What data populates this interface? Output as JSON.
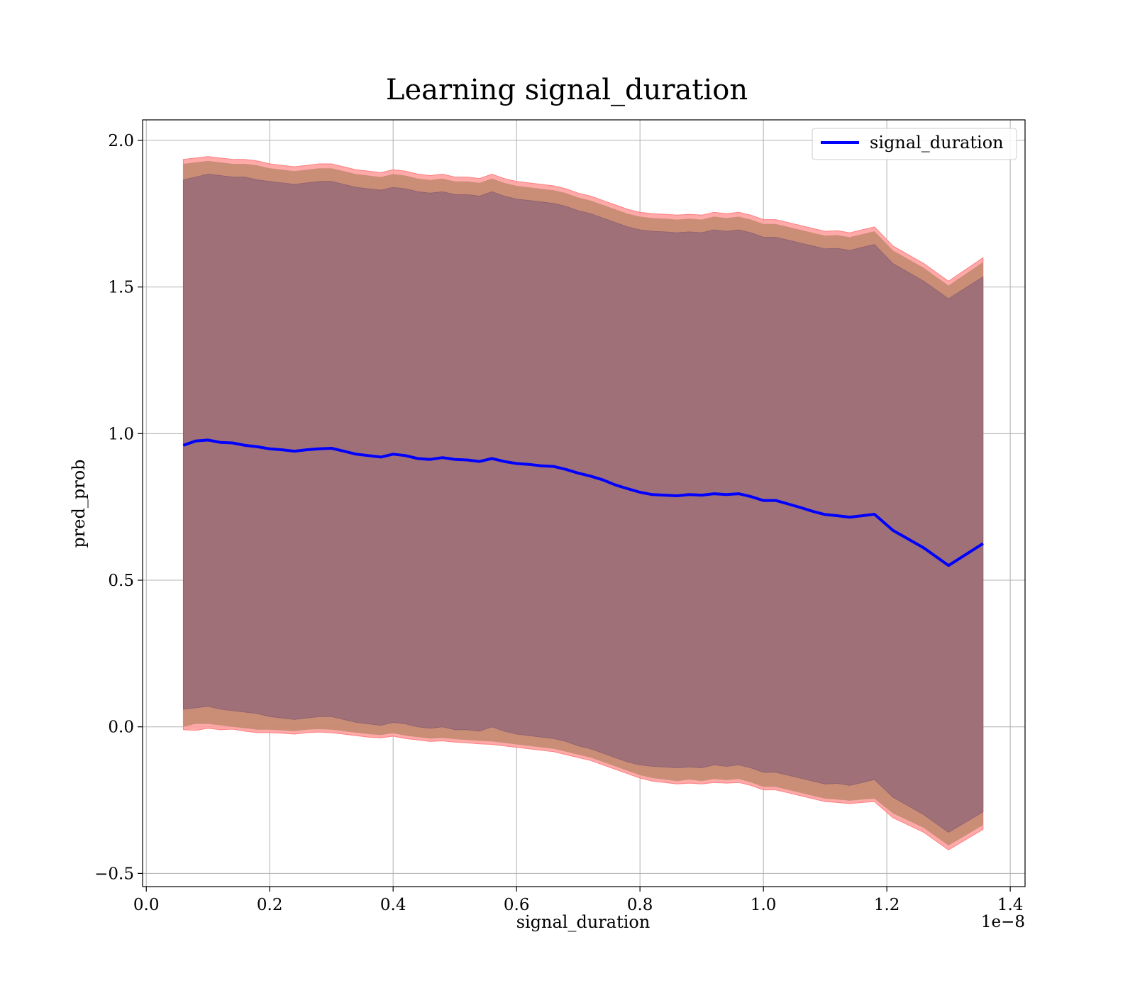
{
  "chart_data": {
    "type": "line",
    "title": "Learning signal_duration",
    "xlabel": "signal_duration",
    "ylabel": "pred_prob",
    "x_offset_label": "1e−8",
    "xlim": [
      -0.006,
      1.424
    ],
    "ylim": [
      -0.545,
      2.07
    ],
    "xticks": [
      0.0,
      0.2,
      0.4,
      0.6,
      0.8,
      1.0,
      1.2,
      1.4
    ],
    "xtick_labels": [
      "0.0",
      "0.2",
      "0.4",
      "0.6",
      "0.8",
      "1.0",
      "1.2",
      "1.4"
    ],
    "yticks": [
      -0.5,
      0.0,
      0.5,
      1.0,
      1.5,
      2.0
    ],
    "ytick_labels": [
      "−0.5",
      "0.0",
      "0.5",
      "1.0",
      "1.5",
      "2.0"
    ],
    "grid": true,
    "legend": {
      "position": "top-right",
      "entries": [
        "signal_duration"
      ]
    },
    "colors": {
      "line": "#0000ff",
      "outer_band": "#ff9a9a",
      "inner_band": "#8b5a6a",
      "mid_band": "#c48a70"
    },
    "x": [
      0.06,
      0.08,
      0.1,
      0.12,
      0.14,
      0.16,
      0.18,
      0.2,
      0.22,
      0.24,
      0.26,
      0.28,
      0.3,
      0.32,
      0.34,
      0.36,
      0.38,
      0.4,
      0.42,
      0.44,
      0.46,
      0.48,
      0.5,
      0.52,
      0.54,
      0.56,
      0.58,
      0.6,
      0.62,
      0.64,
      0.66,
      0.68,
      0.7,
      0.72,
      0.74,
      0.76,
      0.78,
      0.8,
      0.82,
      0.84,
      0.86,
      0.88,
      0.9,
      0.92,
      0.94,
      0.96,
      0.98,
      1.0,
      1.02,
      1.04,
      1.06,
      1.08,
      1.1,
      1.12,
      1.14,
      1.16,
      1.18,
      1.21,
      1.26,
      1.3,
      1.356
    ],
    "series": [
      {
        "name": "signal_duration",
        "values": [
          0.96,
          0.975,
          0.978,
          0.97,
          0.968,
          0.96,
          0.955,
          0.948,
          0.945,
          0.94,
          0.945,
          0.948,
          0.95,
          0.94,
          0.93,
          0.925,
          0.92,
          0.93,
          0.925,
          0.915,
          0.912,
          0.918,
          0.912,
          0.91,
          0.905,
          0.915,
          0.905,
          0.898,
          0.895,
          0.89,
          0.888,
          0.878,
          0.865,
          0.855,
          0.842,
          0.825,
          0.812,
          0.8,
          0.792,
          0.79,
          0.788,
          0.792,
          0.79,
          0.795,
          0.792,
          0.795,
          0.785,
          0.772,
          0.772,
          0.76,
          0.748,
          0.735,
          0.724,
          0.72,
          0.715,
          0.72,
          0.725,
          0.67,
          0.61,
          0.55,
          0.625
        ]
      }
    ],
    "bands": {
      "outer": {
        "lower": [
          -0.01,
          -0.012,
          -0.005,
          -0.01,
          -0.008,
          -0.015,
          -0.02,
          -0.02,
          -0.022,
          -0.025,
          -0.02,
          -0.018,
          -0.02,
          -0.025,
          -0.03,
          -0.035,
          -0.038,
          -0.032,
          -0.04,
          -0.045,
          -0.05,
          -0.048,
          -0.052,
          -0.055,
          -0.058,
          -0.06,
          -0.065,
          -0.07,
          -0.075,
          -0.08,
          -0.085,
          -0.095,
          -0.105,
          -0.115,
          -0.13,
          -0.145,
          -0.16,
          -0.175,
          -0.185,
          -0.19,
          -0.195,
          -0.192,
          -0.195,
          -0.19,
          -0.192,
          -0.19,
          -0.2,
          -0.215,
          -0.215,
          -0.225,
          -0.235,
          -0.245,
          -0.255,
          -0.258,
          -0.262,
          -0.258,
          -0.255,
          -0.31,
          -0.36,
          -0.42,
          -0.35
        ],
        "upper": [
          1.935,
          1.94,
          1.945,
          1.94,
          1.935,
          1.935,
          1.93,
          1.92,
          1.915,
          1.91,
          1.915,
          1.92,
          1.92,
          1.91,
          1.9,
          1.895,
          1.89,
          1.9,
          1.895,
          1.885,
          1.88,
          1.885,
          1.875,
          1.875,
          1.87,
          1.885,
          1.87,
          1.86,
          1.855,
          1.85,
          1.845,
          1.835,
          1.82,
          1.81,
          1.795,
          1.78,
          1.765,
          1.755,
          1.75,
          1.748,
          1.745,
          1.748,
          1.745,
          1.755,
          1.75,
          1.755,
          1.745,
          1.73,
          1.73,
          1.72,
          1.71,
          1.7,
          1.69,
          1.692,
          1.685,
          1.695,
          1.705,
          1.64,
          1.58,
          1.52,
          1.6
        ]
      },
      "mid": {
        "lower": [
          0.0,
          0.01,
          0.01,
          0.005,
          0.0,
          -0.005,
          -0.01,
          -0.01,
          -0.012,
          -0.015,
          -0.01,
          -0.008,
          -0.01,
          -0.015,
          -0.02,
          -0.025,
          -0.028,
          -0.022,
          -0.03,
          -0.035,
          -0.04,
          -0.038,
          -0.042,
          -0.045,
          -0.048,
          -0.05,
          -0.055,
          -0.06,
          -0.065,
          -0.07,
          -0.075,
          -0.085,
          -0.095,
          -0.105,
          -0.12,
          -0.135,
          -0.15,
          -0.165,
          -0.175,
          -0.18,
          -0.185,
          -0.18,
          -0.185,
          -0.178,
          -0.182,
          -0.178,
          -0.19,
          -0.205,
          -0.205,
          -0.215,
          -0.225,
          -0.235,
          -0.245,
          -0.248,
          -0.252,
          -0.248,
          -0.245,
          -0.295,
          -0.345,
          -0.405,
          -0.335
        ],
        "upper": [
          1.92,
          1.925,
          1.93,
          1.925,
          1.92,
          1.92,
          1.915,
          1.905,
          1.9,
          1.895,
          1.9,
          1.905,
          1.905,
          1.895,
          1.885,
          1.88,
          1.875,
          1.885,
          1.88,
          1.87,
          1.865,
          1.87,
          1.86,
          1.86,
          1.855,
          1.87,
          1.855,
          1.845,
          1.84,
          1.835,
          1.83,
          1.82,
          1.805,
          1.795,
          1.78,
          1.765,
          1.75,
          1.74,
          1.735,
          1.733,
          1.73,
          1.733,
          1.73,
          1.74,
          1.735,
          1.74,
          1.73,
          1.715,
          1.715,
          1.705,
          1.695,
          1.685,
          1.675,
          1.677,
          1.67,
          1.68,
          1.69,
          1.625,
          1.565,
          1.505,
          1.585
        ]
      },
      "inner": {
        "lower": [
          0.06,
          0.065,
          0.07,
          0.06,
          0.055,
          0.05,
          0.045,
          0.035,
          0.03,
          0.025,
          0.03,
          0.035,
          0.035,
          0.025,
          0.015,
          0.01,
          0.005,
          0.015,
          0.01,
          0.0,
          -0.005,
          0.0,
          -0.01,
          -0.01,
          -0.015,
          0.0,
          -0.015,
          -0.025,
          -0.03,
          -0.035,
          -0.04,
          -0.05,
          -0.065,
          -0.075,
          -0.09,
          -0.105,
          -0.12,
          -0.13,
          -0.135,
          -0.137,
          -0.14,
          -0.137,
          -0.14,
          -0.13,
          -0.135,
          -0.13,
          -0.14,
          -0.155,
          -0.155,
          -0.165,
          -0.175,
          -0.185,
          -0.195,
          -0.193,
          -0.2,
          -0.19,
          -0.18,
          -0.24,
          -0.3,
          -0.36,
          -0.29
        ],
        "upper": [
          1.865,
          1.875,
          1.885,
          1.88,
          1.875,
          1.875,
          1.865,
          1.86,
          1.855,
          1.85,
          1.855,
          1.86,
          1.86,
          1.85,
          1.84,
          1.835,
          1.83,
          1.84,
          1.835,
          1.825,
          1.82,
          1.825,
          1.815,
          1.815,
          1.81,
          1.825,
          1.81,
          1.8,
          1.795,
          1.79,
          1.785,
          1.775,
          1.76,
          1.75,
          1.735,
          1.72,
          1.705,
          1.695,
          1.69,
          1.688,
          1.685,
          1.688,
          1.685,
          1.695,
          1.69,
          1.695,
          1.685,
          1.67,
          1.67,
          1.66,
          1.65,
          1.64,
          1.63,
          1.632,
          1.625,
          1.635,
          1.645,
          1.58,
          1.52,
          1.46,
          1.535
        ]
      }
    }
  }
}
